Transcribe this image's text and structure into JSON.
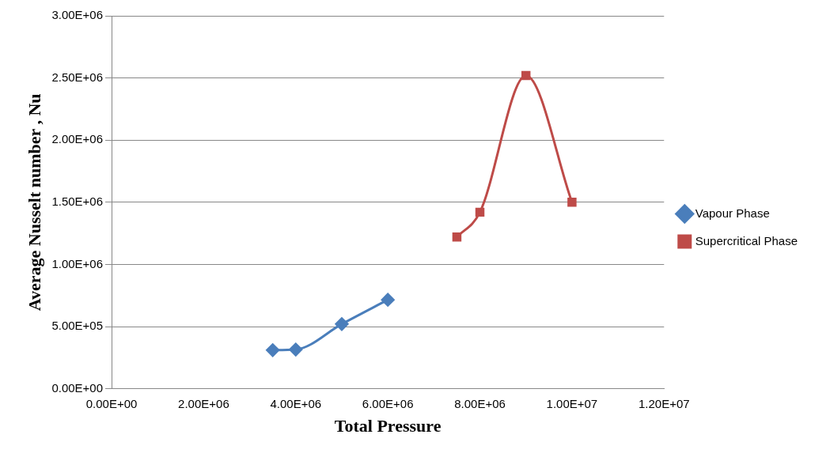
{
  "chart_data": {
    "type": "line",
    "xlabel": "Total Pressure",
    "ylabel": "Average Nusselt number , Nu",
    "xlim": [
      0,
      12000000
    ],
    "xticks": [
      {
        "value": 0,
        "label": "0.00E+00"
      },
      {
        "value": 2000000,
        "label": "2.00E+06"
      },
      {
        "value": 4000000,
        "label": "4.00E+06"
      },
      {
        "value": 6000000,
        "label": "6.00E+06"
      },
      {
        "value": 8000000,
        "label": "8.00E+06"
      },
      {
        "value": 10000000,
        "label": "1.00E+07"
      },
      {
        "value": 12000000,
        "label": "1.20E+07"
      }
    ],
    "ylim": [
      0,
      3000000
    ],
    "yticks": [
      {
        "value": 0,
        "label": "0.00E+00"
      },
      {
        "value": 500000,
        "label": "5.00E+05"
      },
      {
        "value": 1000000,
        "label": "1.00E+06"
      },
      {
        "value": 1500000,
        "label": "1.50E+06"
      },
      {
        "value": 2000000,
        "label": "2.00E+06"
      },
      {
        "value": 2500000,
        "label": "2.50E+06"
      },
      {
        "value": 3000000,
        "label": "3.00E+06"
      }
    ],
    "series": [
      {
        "name": "Vapour Phase",
        "color": "#4a7ebb",
        "marker": "diamond",
        "x": [
          3500000,
          4000000,
          5000000,
          6000000
        ],
        "values": [
          310000,
          315000,
          520000,
          715000
        ]
      },
      {
        "name": "Supercritical Phase",
        "color": "#be4b48",
        "marker": "square",
        "x": [
          7500000,
          8000000,
          9000000,
          10000000
        ],
        "values": [
          1220000,
          1420000,
          2520000,
          1500000
        ]
      }
    ],
    "grid": "y",
    "legend": "right"
  }
}
